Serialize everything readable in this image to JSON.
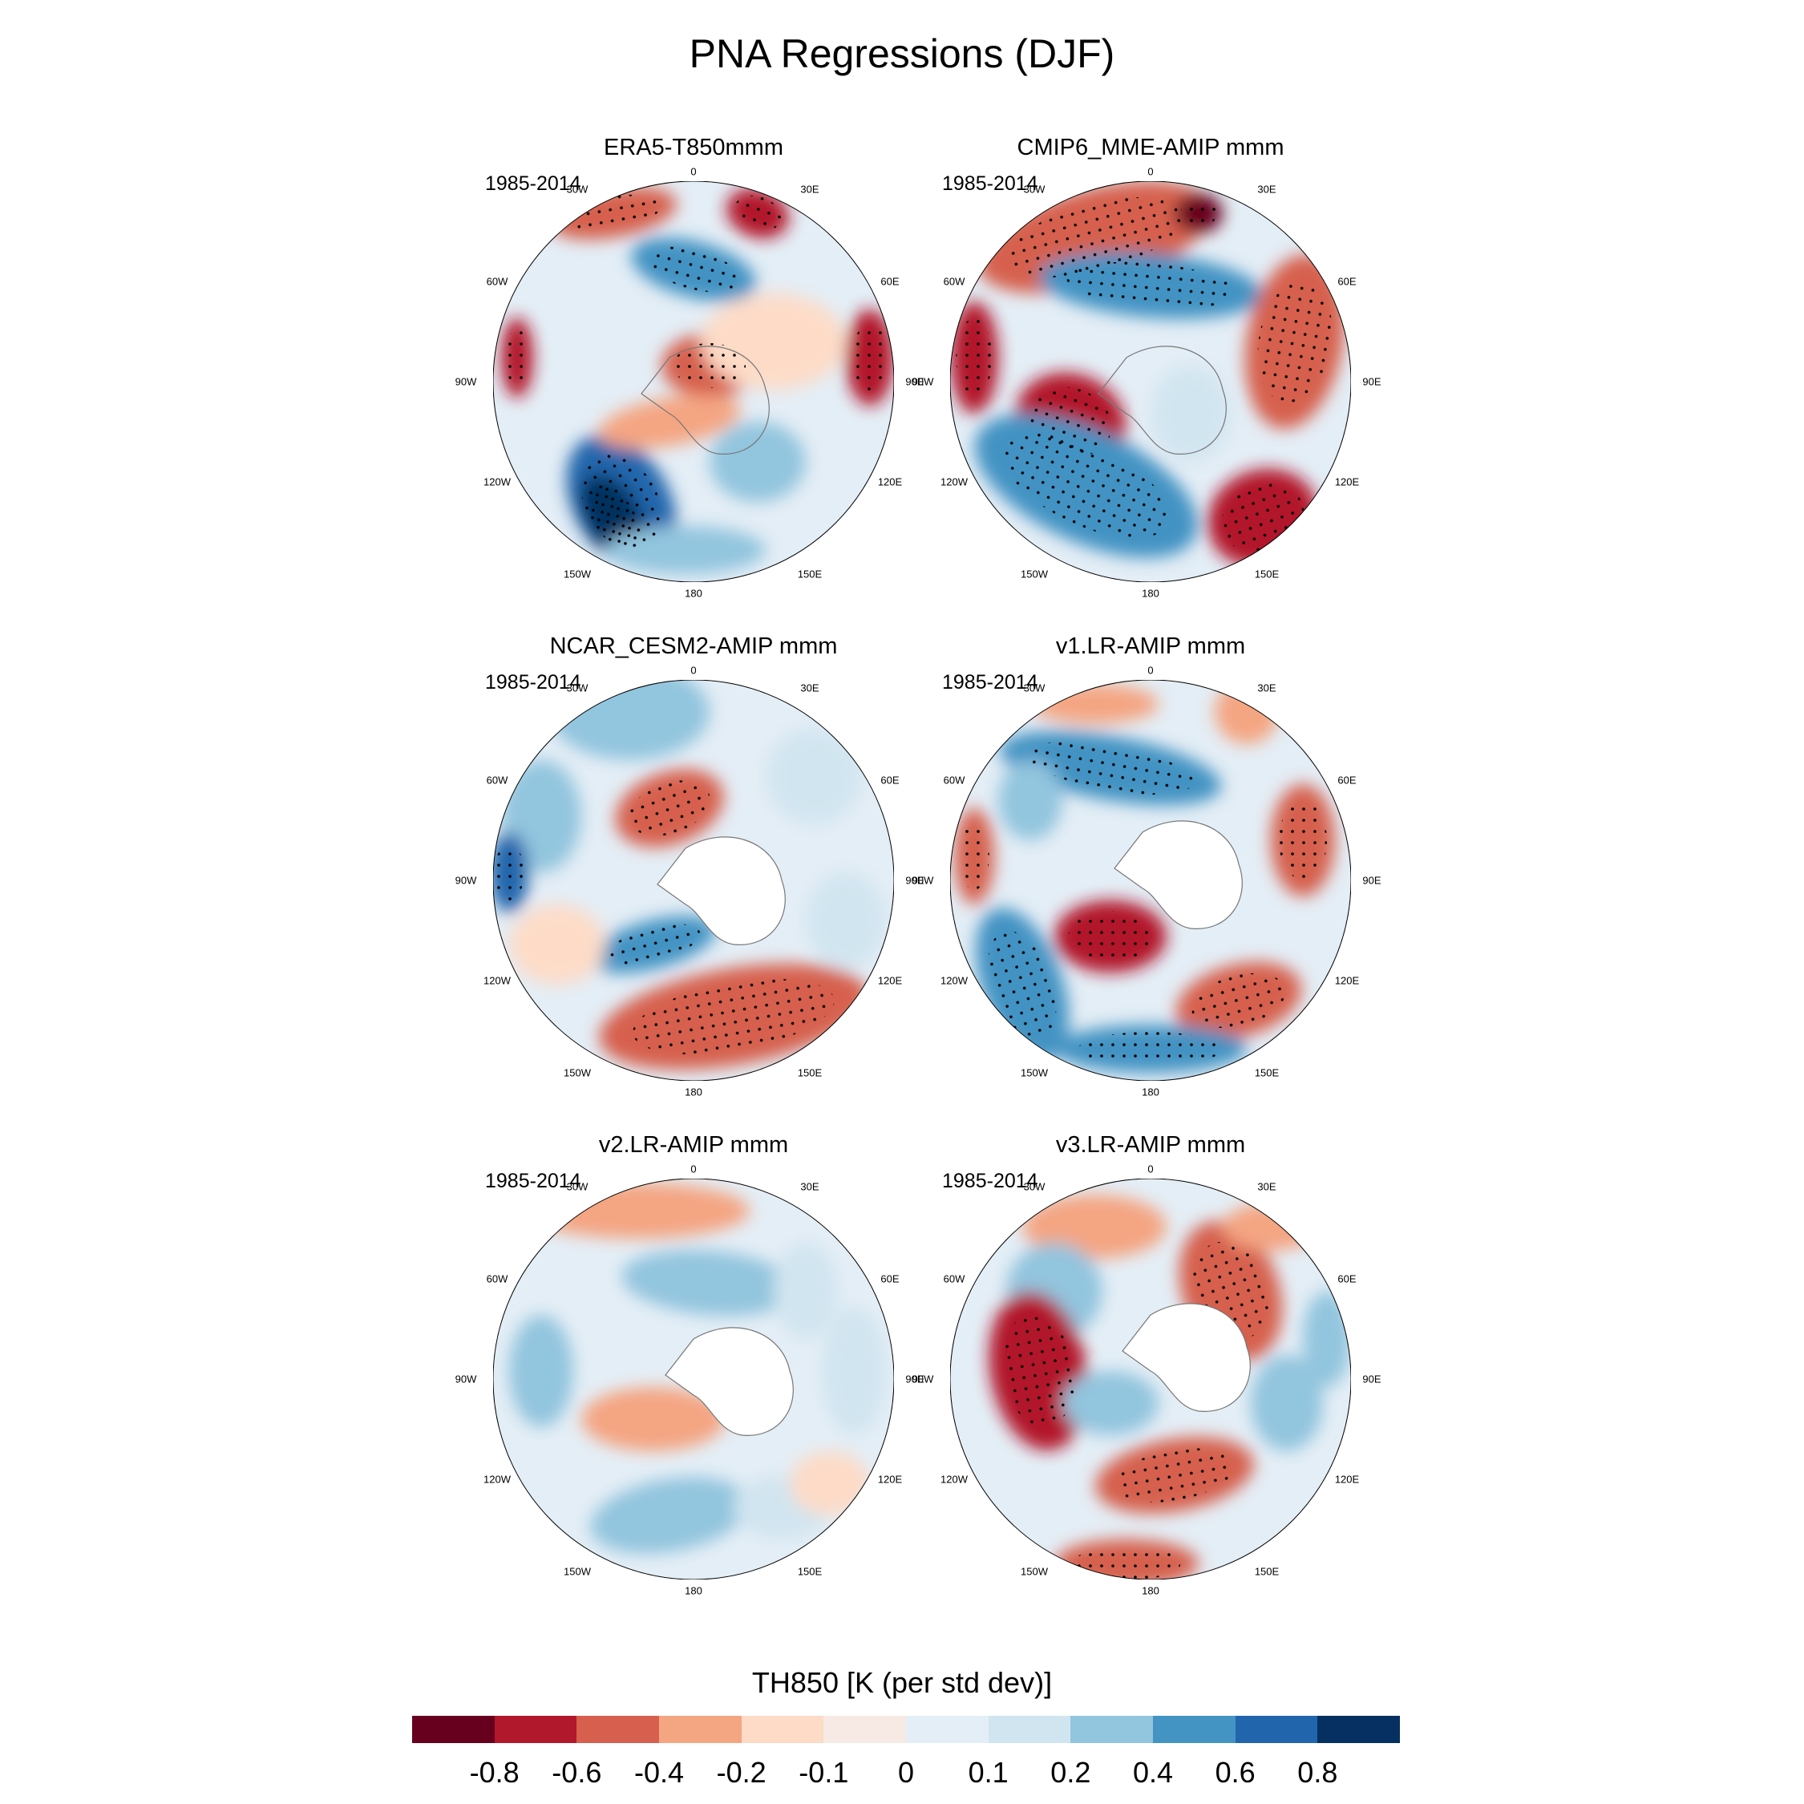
{
  "title": "PNA Regressions (DJF)",
  "colorbar": {
    "label": "TH850 [K (per std dev)]",
    "tick_labels": [
      "-0.8",
      "-0.6",
      "-0.4",
      "-0.2",
      "-0.1",
      "0",
      "0.1",
      "0.2",
      "0.4",
      "0.6",
      "0.8"
    ],
    "colors": [
      "#67001f",
      "#b2182b",
      "#d6604d",
      "#f4a582",
      "#fddbc7",
      "#f7eae4",
      "#e4eef6",
      "#d1e5f0",
      "#92c5de",
      "#4393c3",
      "#2166ac",
      "#053061"
    ]
  },
  "axis_labels": {
    "top": "0",
    "bottom": "180",
    "left": "90W",
    "right": "90E",
    "ul1": "30W",
    "ul2": "60W",
    "ur1": "30E",
    "ur2": "60E",
    "ll1": "120W",
    "ll2": "150W",
    "lr1": "120E",
    "lr2": "150E"
  },
  "panels": [
    {
      "title": "ERA5-T850mmm",
      "period": "1985-2014"
    },
    {
      "title": "CMIP6_MME-AMIP  mmm",
      "period": "1985-2014"
    },
    {
      "title": "NCAR_CESM2-AMIP  mmm",
      "period": "1985-2014"
    },
    {
      "title": "v1.LR-AMIP  mmm",
      "period": "1985-2014"
    },
    {
      "title": "v2.LR-AMIP  mmm",
      "period": "1985-2014"
    },
    {
      "title": "v3.LR-AMIP  mmm",
      "period": "1985-2014"
    }
  ]
}
